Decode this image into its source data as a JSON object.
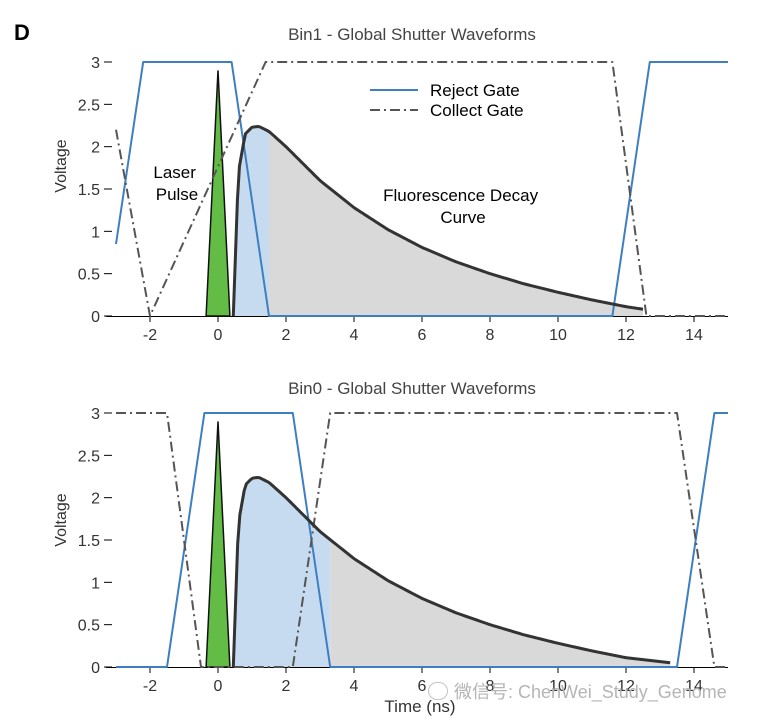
{
  "panel_label": "D",
  "watermark": "微信号: ChenWei_Study_Genome",
  "colors": {
    "reject": "#3d7fc1",
    "collect": "#555555",
    "laser_fill": "#63bc46",
    "decay_line": "#333333",
    "fill_blue": "#c6dbef",
    "fill_grey": "#d9d9d9",
    "axis": "#000000"
  },
  "chart_data": [
    {
      "type": "line",
      "title": "Bin1 - Global Shutter Waveforms",
      "xlabel": "",
      "ylabel": "Voltage",
      "xlim": [
        -3,
        15
      ],
      "ylim": [
        0,
        3
      ],
      "xticks": [
        -2,
        0,
        2,
        4,
        6,
        8,
        10,
        12,
        14
      ],
      "yticks": [
        0,
        0.5,
        1,
        1.5,
        2,
        2.5,
        3
      ],
      "ytick_labels": [
        "0",
        "0.5",
        "1",
        "1.5",
        "2",
        "2.5",
        "3"
      ],
      "legend": {
        "position": "top-center",
        "entries": [
          "Reject Gate",
          "Collect Gate"
        ]
      },
      "annotations": [
        {
          "text": "Laser\nPulse",
          "x": -1.2,
          "y": 1.55
        },
        {
          "text": "Fluorescence Decay\nCurve",
          "x": 5.8,
          "y": 1.4
        }
      ],
      "series": [
        {
          "name": "Reject Gate",
          "style": "solid",
          "x": [
            -3.0,
            -2.2,
            0.4,
            1.5,
            11.6,
            12.7,
            15.0
          ],
          "y": [
            0.85,
            3.0,
            3.0,
            0.0,
            0.0,
            3.0,
            3.0
          ]
        },
        {
          "name": "Collect Gate",
          "style": "dashdot",
          "x": [
            -3.0,
            -2.0,
            1.4,
            11.6,
            12.6,
            15.0
          ],
          "y": [
            2.2,
            0.0,
            3.0,
            3.0,
            0.0,
            0.0
          ]
        },
        {
          "role": "laser-pulse",
          "x": [
            -0.35,
            0.0,
            0.35
          ],
          "y": [
            0.0,
            2.9,
            0.0
          ]
        },
        {
          "role": "fluorescence-decay",
          "x": [
            0.45,
            0.6,
            0.8,
            1.0,
            1.2,
            1.5,
            2.0,
            3.0,
            4.0,
            5.0,
            6.0,
            7.0,
            8.0,
            9.0,
            10.0,
            11.0,
            12.0,
            12.5
          ],
          "y": [
            0.0,
            1.7,
            2.15,
            2.23,
            2.24,
            2.18,
            2.0,
            1.6,
            1.28,
            1.02,
            0.81,
            0.64,
            0.5,
            0.38,
            0.28,
            0.19,
            0.11,
            0.08
          ],
          "shade_collected_from": 1.5
        }
      ]
    },
    {
      "type": "line",
      "title": "Bin0 - Global Shutter Waveforms",
      "xlabel": "Time (ns)",
      "ylabel": "Voltage",
      "xlim": [
        -3,
        15
      ],
      "ylim": [
        0,
        3
      ],
      "xticks": [
        -2,
        0,
        2,
        4,
        6,
        8,
        10,
        12,
        14
      ],
      "yticks": [
        0,
        0.5,
        1,
        1.5,
        2,
        2.5,
        3
      ],
      "ytick_labels": [
        "0",
        "0.5",
        "1",
        "1.5",
        "2",
        "2.5",
        "3"
      ],
      "series": [
        {
          "name": "Reject Gate",
          "style": "solid",
          "x": [
            -3.0,
            -1.5,
            -0.4,
            2.2,
            3.3,
            13.5,
            14.6,
            15.0
          ],
          "y": [
            0.0,
            0.0,
            3.0,
            3.0,
            0.0,
            0.0,
            3.0,
            3.0
          ]
        },
        {
          "name": "Collect Gate",
          "style": "dashdot",
          "x": [
            -3.0,
            -1.5,
            -0.5,
            2.2,
            3.3,
            13.5,
            14.6,
            15.0
          ],
          "y": [
            3.0,
            3.0,
            0.0,
            0.0,
            3.0,
            3.0,
            0.0,
            0.0
          ]
        },
        {
          "role": "laser-pulse",
          "x": [
            -0.35,
            0.0,
            0.35
          ],
          "y": [
            0.0,
            2.9,
            0.0
          ]
        },
        {
          "role": "fluorescence-decay",
          "x": [
            0.45,
            0.6,
            0.8,
            1.0,
            1.2,
            1.5,
            2.0,
            3.0,
            4.0,
            5.0,
            6.0,
            7.0,
            8.0,
            9.0,
            10.0,
            11.0,
            12.0,
            13.3
          ],
          "y": [
            0.0,
            1.7,
            2.15,
            2.23,
            2.24,
            2.18,
            2.0,
            1.6,
            1.28,
            1.02,
            0.81,
            0.64,
            0.5,
            0.38,
            0.28,
            0.19,
            0.11,
            0.05
          ],
          "shade_collected_from": 3.3
        }
      ]
    }
  ]
}
